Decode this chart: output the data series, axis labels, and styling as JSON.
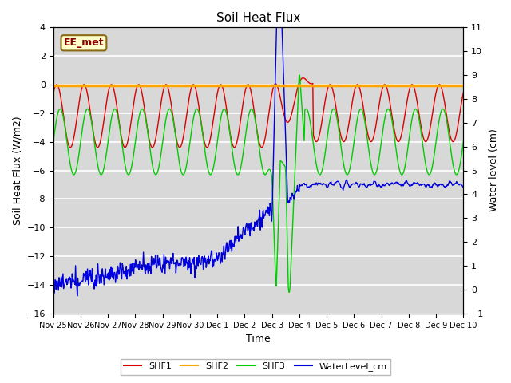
{
  "title": "Soil Heat Flux",
  "ylabel_left": "Soil Heat Flux (W/m2)",
  "ylabel_right": "Water level (cm)",
  "xlabel": "Time",
  "annotation_text": "EE_met",
  "ylim_left": [
    -16,
    4
  ],
  "ylim_right": [
    -1,
    11
  ],
  "background_color": "#ffffff",
  "plot_bg_color": "#d8d8d8",
  "grid_color": "#ffffff",
  "shf2_color": "#FFA500",
  "shf1_color": "#dd0000",
  "shf3_color": "#00cc00",
  "water_color": "#0000dd",
  "legend_shf1": "SHF1",
  "legend_shf2": "SHF2",
  "legend_shf3": "SHF3",
  "legend_water": "WaterLevel_cm",
  "tick_labels": [
    "Nov 25",
    "Nov 26",
    "Nov 27",
    "Nov 28",
    "Nov 29",
    "Nov 30",
    "Dec 1",
    "Dec 2",
    "Dec 3",
    "Dec 4",
    "Dec 5",
    "Dec 6",
    "Dec 7",
    "Dec 8",
    "Dec 9",
    "Dec 10"
  ]
}
